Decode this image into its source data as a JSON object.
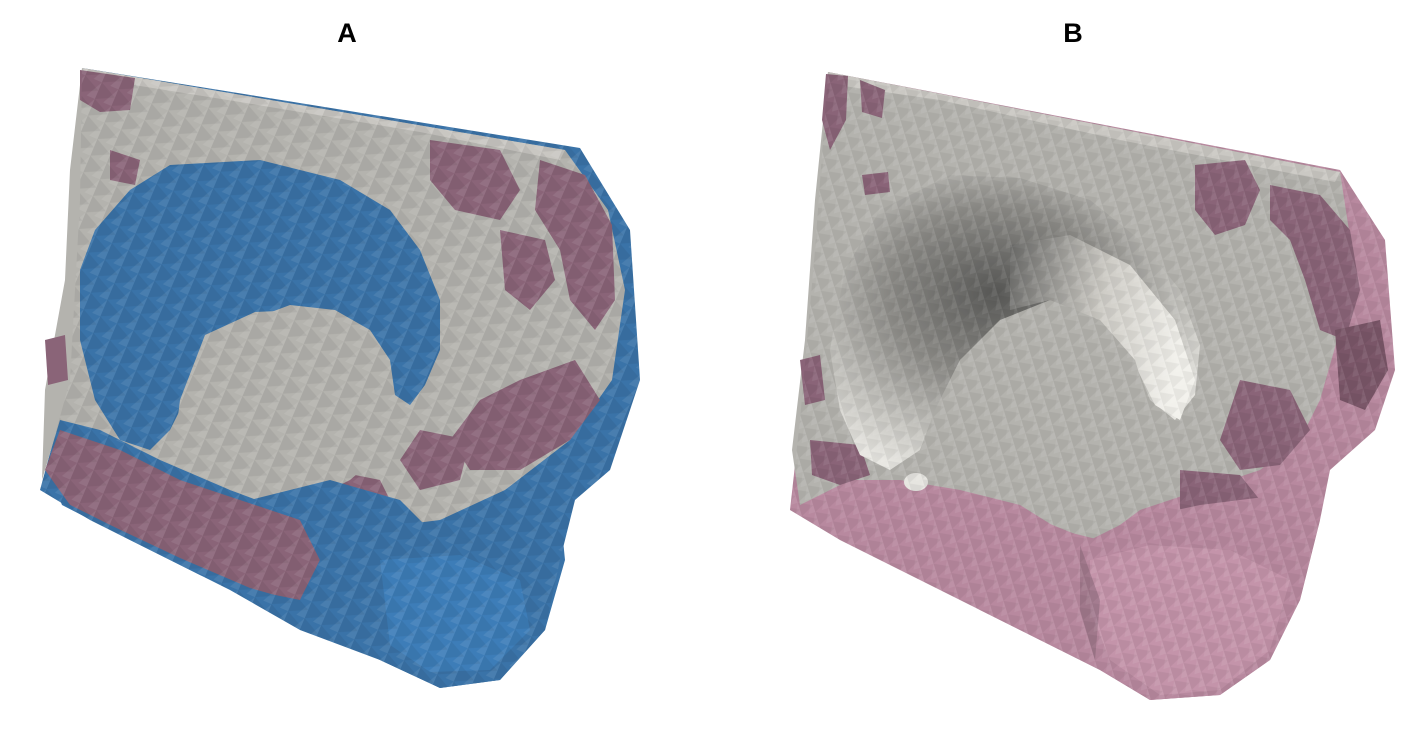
{
  "panels": [
    {
      "label": "A",
      "colors": {
        "bone": "#b4b3ae",
        "void": "#3a73a8",
        "tissue": "#8a6478"
      }
    },
    {
      "label": "B",
      "colors": {
        "bone": "#b4b3ae",
        "tissue": "#b8899f"
      }
    }
  ]
}
